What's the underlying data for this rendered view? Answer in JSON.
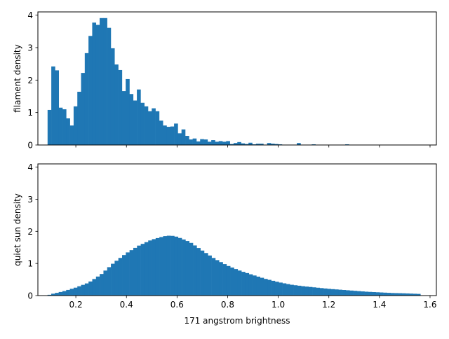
{
  "colors": {
    "bar": "#1f77b4",
    "axis": "#000000",
    "background": "#ffffff"
  },
  "chart_data": [
    {
      "type": "bar",
      "panel": "top",
      "title": "",
      "xlabel": "",
      "ylabel": "filament density",
      "xlim": [
        0.05,
        1.625
      ],
      "ylim": [
        0,
        4.1
      ],
      "grid": false,
      "bin_width": 0.0147,
      "x_ticks": [
        0.2,
        0.4,
        0.6,
        0.8,
        1.0,
        1.2,
        1.4,
        1.6
      ],
      "x_tick_labels": [],
      "y_ticks": [
        0,
        1,
        2,
        3,
        4
      ],
      "y_tick_labels": [
        "0",
        "1",
        "2",
        "3",
        "4"
      ],
      "bins": [
        [
          0.0883,
          1.08
        ],
        [
          0.103,
          2.42
        ],
        [
          0.1177,
          2.3
        ],
        [
          0.1324,
          1.15
        ],
        [
          0.1471,
          1.1
        ],
        [
          0.1618,
          0.82
        ],
        [
          0.1765,
          0.6
        ],
        [
          0.1912,
          1.19
        ],
        [
          0.2059,
          1.64
        ],
        [
          0.2206,
          2.22
        ],
        [
          0.2353,
          2.83
        ],
        [
          0.25,
          3.36
        ],
        [
          0.2647,
          3.77
        ],
        [
          0.2794,
          3.7
        ],
        [
          0.2941,
          3.91
        ],
        [
          0.3088,
          3.91
        ],
        [
          0.3235,
          3.61
        ],
        [
          0.3382,
          2.98
        ],
        [
          0.3529,
          2.48
        ],
        [
          0.3676,
          2.31
        ],
        [
          0.3824,
          1.66
        ],
        [
          0.3971,
          2.03
        ],
        [
          0.4118,
          1.57
        ],
        [
          0.4265,
          1.37
        ],
        [
          0.4412,
          1.71
        ],
        [
          0.4559,
          1.3
        ],
        [
          0.4706,
          1.19
        ],
        [
          0.4853,
          1.04
        ],
        [
          0.5,
          1.13
        ],
        [
          0.5147,
          1.04
        ],
        [
          0.5294,
          0.75
        ],
        [
          0.5441,
          0.6
        ],
        [
          0.5588,
          0.56
        ],
        [
          0.5735,
          0.57
        ],
        [
          0.5882,
          0.66
        ],
        [
          0.6029,
          0.36
        ],
        [
          0.6176,
          0.48
        ],
        [
          0.6324,
          0.28
        ],
        [
          0.6471,
          0.17
        ],
        [
          0.6618,
          0.2
        ],
        [
          0.6765,
          0.11
        ],
        [
          0.6912,
          0.18
        ],
        [
          0.7059,
          0.17
        ],
        [
          0.7206,
          0.1
        ],
        [
          0.7353,
          0.15
        ],
        [
          0.75,
          0.1
        ],
        [
          0.7647,
          0.12
        ],
        [
          0.7794,
          0.1
        ],
        [
          0.7941,
          0.12
        ],
        [
          0.8088,
          0.03
        ],
        [
          0.8235,
          0.06
        ],
        [
          0.8382,
          0.09
        ],
        [
          0.8529,
          0.05
        ],
        [
          0.8676,
          0.03
        ],
        [
          0.8824,
          0.07
        ],
        [
          0.8971,
          0.02
        ],
        [
          0.9118,
          0.04
        ],
        [
          0.9265,
          0.04
        ],
        [
          0.9412,
          0.01
        ],
        [
          0.9559,
          0.06
        ],
        [
          0.9706,
          0.04
        ],
        [
          0.9853,
          0.03
        ],
        [
          1.0,
          0.02
        ],
        [
          1.0441,
          0.01
        ],
        [
          1.0735,
          0.06
        ],
        [
          1.1029,
          0.01
        ],
        [
          1.1324,
          0.02
        ],
        [
          1.1912,
          0.01
        ],
        [
          1.2647,
          0.02
        ]
      ]
    },
    {
      "type": "bar",
      "panel": "bottom",
      "title": "",
      "xlabel": "171 angstrom brightness",
      "ylabel": "quiet sun density",
      "xlim": [
        0.05,
        1.625
      ],
      "ylim": [
        0,
        4.1
      ],
      "grid": false,
      "x_ticks": [
        0.2,
        0.4,
        0.6,
        0.8,
        1.0,
        1.2,
        1.4,
        1.6
      ],
      "x_tick_labels": [
        "0.2",
        "0.4",
        "0.6",
        "0.8",
        "1.0",
        "1.2",
        "1.4",
        "1.6"
      ],
      "y_ticks": [
        0,
        1,
        2,
        3,
        4
      ],
      "y_tick_labels": [
        "0",
        "1",
        "2",
        "3",
        "4"
      ],
      "bin_edges": [
        0.088,
        1.562
      ],
      "curve_points": [
        [
          0.088,
          0.0
        ],
        [
          0.1,
          0.04
        ],
        [
          0.15,
          0.13
        ],
        [
          0.2,
          0.25
        ],
        [
          0.25,
          0.4
        ],
        [
          0.3,
          0.66
        ],
        [
          0.35,
          1.02
        ],
        [
          0.4,
          1.32
        ],
        [
          0.45,
          1.56
        ],
        [
          0.5,
          1.74
        ],
        [
          0.55,
          1.85
        ],
        [
          0.575,
          1.87
        ],
        [
          0.6,
          1.83
        ],
        [
          0.65,
          1.67
        ],
        [
          0.7,
          1.4
        ],
        [
          0.75,
          1.14
        ],
        [
          0.8,
          0.93
        ],
        [
          0.85,
          0.77
        ],
        [
          0.9,
          0.64
        ],
        [
          0.95,
          0.52
        ],
        [
          1.0,
          0.42
        ],
        [
          1.05,
          0.34
        ],
        [
          1.1,
          0.29
        ],
        [
          1.15,
          0.25
        ],
        [
          1.2,
          0.21
        ],
        [
          1.25,
          0.18
        ],
        [
          1.3,
          0.15
        ],
        [
          1.35,
          0.12
        ],
        [
          1.4,
          0.1
        ],
        [
          1.45,
          0.08
        ],
        [
          1.5,
          0.07
        ],
        [
          1.562,
          0.05
        ]
      ]
    }
  ]
}
